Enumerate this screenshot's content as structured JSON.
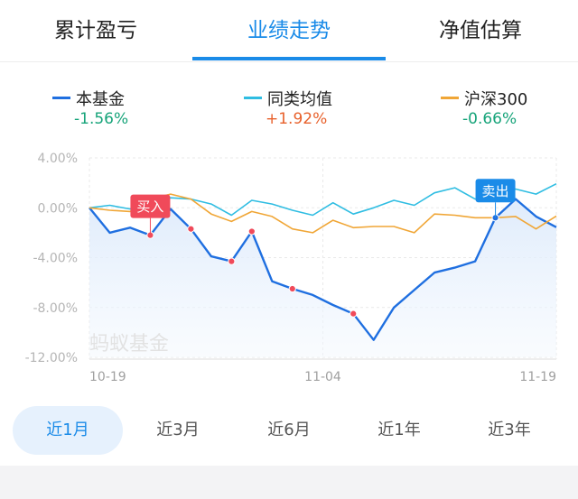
{
  "tabs": [
    "累计盈亏",
    "业绩走势",
    "净值估算"
  ],
  "active_tab": 1,
  "colors": {
    "fund": "#1f6fe0",
    "category": "#2fbde2",
    "index": "#f0a636",
    "buy_flag": "#f04a5a",
    "sell_flag": "#1a8be8",
    "negative": "#17a47a",
    "positive": "#e8612c"
  },
  "legend": [
    {
      "name": "本基金",
      "value": "-1.56%",
      "color_key": "fund",
      "value_color_key": "negative"
    },
    {
      "name": "同类均值",
      "value": "+1.92%",
      "color_key": "category",
      "value_color_key": "positive"
    },
    {
      "name": "沪深300",
      "value": "-0.66%",
      "color_key": "index",
      "value_color_key": "negative"
    }
  ],
  "watermark": "蚂蚁基金",
  "chart_data": {
    "type": "line",
    "y_tick_labels": [
      "4.00%",
      "0.00%",
      "-4.00%",
      "-8.00%",
      "-12.00%"
    ],
    "y_ticks": [
      4,
      0,
      -4,
      -8,
      -12
    ],
    "ylim": [
      -12,
      4
    ],
    "x_tick_labels": [
      "10-19",
      "11-04",
      "11-19"
    ],
    "x_tick_positions": [
      0,
      11,
      22
    ],
    "xlim": [
      0,
      22
    ],
    "grid": true,
    "series": [
      {
        "name": "本基金",
        "color_key": "fund",
        "area": true,
        "values": [
          0,
          -2.0,
          -1.6,
          -2.2,
          -0.1,
          -1.7,
          -3.9,
          -4.3,
          -1.9,
          -5.9,
          -6.5,
          -7.0,
          -7.8,
          -8.5,
          -10.6,
          -8.0,
          -6.6,
          -5.2,
          -4.8,
          -4.3,
          -0.8,
          0.7,
          -0.7,
          -1.56
        ]
      },
      {
        "name": "同类均值",
        "color_key": "category",
        "values": [
          0,
          0.2,
          -0.1,
          0.6,
          0.8,
          0.7,
          0.3,
          -0.6,
          0.6,
          0.3,
          -0.2,
          -0.6,
          0.4,
          -0.5,
          0,
          0.6,
          0.2,
          1.2,
          1.6,
          0.7,
          1.0,
          1.5,
          1.1,
          1.92
        ]
      },
      {
        "name": "沪深300",
        "color_key": "index",
        "values": [
          0,
          -0.2,
          -0.3,
          0.7,
          1.1,
          0.7,
          -0.5,
          -1.1,
          -0.3,
          -0.7,
          -1.7,
          -2.0,
          -1.0,
          -1.6,
          -1.5,
          -1.5,
          -2.0,
          -0.5,
          -0.6,
          -0.8,
          -0.8,
          -0.7,
          -1.7,
          -0.66
        ]
      }
    ],
    "markers": [
      3,
      5,
      7,
      8,
      10,
      13,
      20
    ],
    "flags": [
      {
        "label": "买入",
        "kind": "buy",
        "index": 3
      },
      {
        "label": "卖出",
        "kind": "sell",
        "index": 20
      }
    ]
  },
  "ranges": [
    "近1月",
    "近3月",
    "近6月",
    "近1年",
    "近3年"
  ],
  "active_range": 0
}
